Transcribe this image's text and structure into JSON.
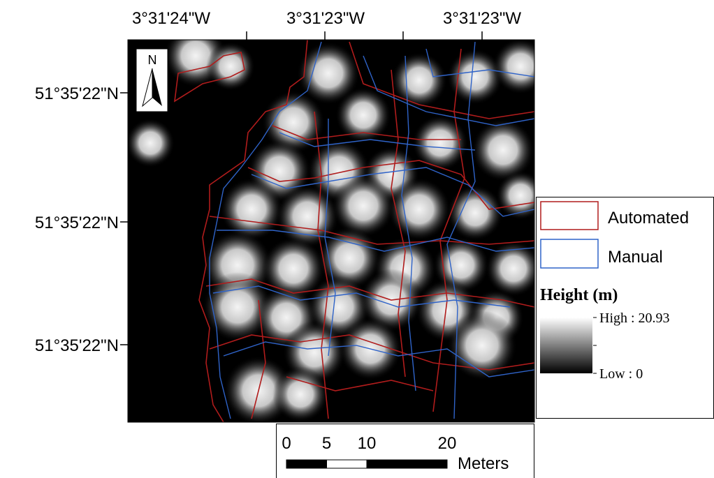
{
  "map": {
    "x_labels": [
      "3°31'24\"W",
      "3°31'23\"W",
      "3°31'23\"W"
    ],
    "y_labels": [
      "51°35'22\"N",
      "51°35'22\"N",
      "51°35'22\"N"
    ],
    "north": "N"
  },
  "legend": {
    "items": [
      "Automated",
      "Manual"
    ],
    "height_title": "Height (m)",
    "high": "High : 20.93",
    "low": "Low : 0"
  },
  "scale": {
    "ticks": [
      0,
      5,
      10,
      20
    ],
    "unit": "Meters"
  }
}
